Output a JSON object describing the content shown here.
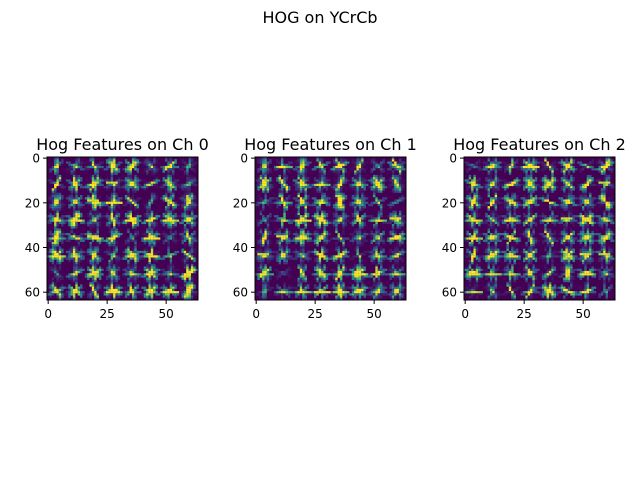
{
  "figure": {
    "suptitle": "HOG on YCrCb"
  },
  "chart_data": [
    {
      "type": "heatmap",
      "title": "Hog Features on Ch 0",
      "xlabel": "",
      "ylabel": "",
      "xlim": [
        0,
        63
      ],
      "ylim": [
        63,
        0
      ],
      "xticks": [
        0,
        25,
        50
      ],
      "yticks": [
        0,
        20,
        40,
        60
      ],
      "grid": false,
      "colormap": "viridis",
      "image_size": [
        64,
        64
      ],
      "hog_cells": 8,
      "pixels_per_cell": 8,
      "seed": 11
    },
    {
      "type": "heatmap",
      "title": "Hog Features on Ch 1",
      "xlabel": "",
      "ylabel": "",
      "xlim": [
        0,
        63
      ],
      "ylim": [
        63,
        0
      ],
      "xticks": [
        0,
        25,
        50
      ],
      "yticks": [
        0,
        20,
        40,
        60
      ],
      "grid": false,
      "colormap": "viridis",
      "image_size": [
        64,
        64
      ],
      "hog_cells": 8,
      "pixels_per_cell": 8,
      "seed": 23
    },
    {
      "type": "heatmap",
      "title": "Hog Features on Ch 2",
      "xlabel": "",
      "ylabel": "",
      "xlim": [
        0,
        63
      ],
      "ylim": [
        63,
        0
      ],
      "xticks": [
        0,
        25,
        50
      ],
      "yticks": [
        0,
        20,
        40,
        60
      ],
      "grid": false,
      "colormap": "viridis",
      "image_size": [
        64,
        64
      ],
      "hog_cells": 8,
      "pixels_per_cell": 8,
      "seed": 37
    }
  ]
}
